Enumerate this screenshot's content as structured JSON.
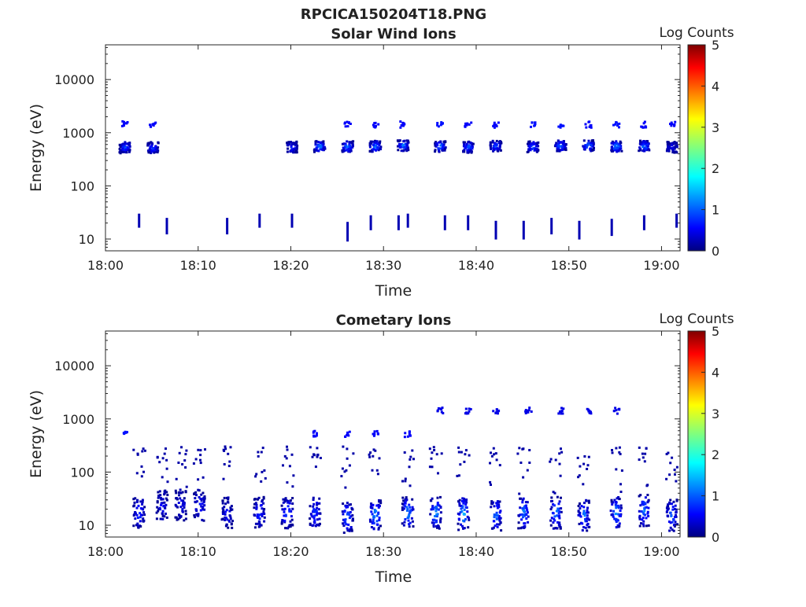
{
  "figure": {
    "title": "RPCICA150204T18.PNG"
  },
  "chart_data": [
    {
      "type": "heatmap",
      "title": "Solar Wind Ions",
      "xlabel": "Time",
      "ylabel": "Energy (eV)",
      "x_ticks": [
        "18:00",
        "18:10",
        "18:20",
        "18:30",
        "18:40",
        "18:50",
        "19:00"
      ],
      "y_ticks": [
        "10",
        "100",
        "1000",
        "10000"
      ],
      "y_scale": "log",
      "ylim": [
        6,
        45000
      ],
      "xlim": [
        "18:00",
        "19:02"
      ],
      "colorbar": {
        "label": "Log Counts",
        "range": [
          0,
          5
        ],
        "ticks": [
          "0",
          "1",
          "2",
          "3",
          "4",
          "5"
        ],
        "colormap": "jet"
      },
      "blobs": [
        {
          "t": "18:02",
          "e": 550,
          "c": 1.0
        },
        {
          "t": "18:05",
          "e": 550,
          "c": 0.9
        },
        {
          "t": "18:20",
          "e": 560,
          "c": 0.8
        },
        {
          "t": "18:23",
          "e": 580,
          "c": 1.4
        },
        {
          "t": "18:26",
          "e": 580,
          "c": 1.3
        },
        {
          "t": "18:29",
          "e": 580,
          "c": 1.3
        },
        {
          "t": "18:32",
          "e": 600,
          "c": 1.3
        },
        {
          "t": "18:36",
          "e": 580,
          "c": 1.2
        },
        {
          "t": "18:39",
          "e": 560,
          "c": 1.2
        },
        {
          "t": "18:42",
          "e": 580,
          "c": 1.1
        },
        {
          "t": "18:46",
          "e": 570,
          "c": 1.2
        },
        {
          "t": "18:49",
          "e": 590,
          "c": 1.2
        },
        {
          "t": "18:52",
          "e": 600,
          "c": 1.3
        },
        {
          "t": "18:55",
          "e": 580,
          "c": 1.5
        },
        {
          "t": "18:58",
          "e": 590,
          "c": 1.3
        },
        {
          "t": "19:01",
          "e": 560,
          "c": 0.6
        }
      ],
      "secondary": [
        {
          "t": "18:02",
          "e": 1500,
          "c": 0.6
        },
        {
          "t": "18:05",
          "e": 1500,
          "c": 0.6
        },
        {
          "t": "18:26",
          "e": 1500,
          "c": 0.6
        },
        {
          "t": "18:29",
          "e": 1500,
          "c": 0.6
        },
        {
          "t": "18:32",
          "e": 1500,
          "c": 0.6
        },
        {
          "t": "18:36",
          "e": 1500,
          "c": 0.7
        },
        {
          "t": "18:39",
          "e": 1500,
          "c": 0.6
        },
        {
          "t": "18:42",
          "e": 1500,
          "c": 0.6
        },
        {
          "t": "18:46",
          "e": 1500,
          "c": 0.7
        },
        {
          "t": "18:49",
          "e": 1500,
          "c": 0.7
        },
        {
          "t": "18:52",
          "e": 1500,
          "c": 0.6
        },
        {
          "t": "18:55",
          "e": 1500,
          "c": 0.7
        },
        {
          "t": "18:58",
          "e": 1500,
          "c": 0.6
        },
        {
          "t": "19:01",
          "e": 1500,
          "c": 0.6
        }
      ],
      "low_bars": [
        {
          "t": "18:03.5",
          "e": 20
        },
        {
          "t": "18:06.5",
          "e": 15
        },
        {
          "t": "18:13",
          "e": 15
        },
        {
          "t": "18:16.5",
          "e": 20
        },
        {
          "t": "18:20",
          "e": 20
        },
        {
          "t": "18:26",
          "e": 11
        },
        {
          "t": "18:28.5",
          "e": 18
        },
        {
          "t": "18:31.5",
          "e": 18
        },
        {
          "t": "18:32.5",
          "e": 20
        },
        {
          "t": "18:36.5",
          "e": 18
        },
        {
          "t": "18:39",
          "e": 18
        },
        {
          "t": "18:42",
          "e": 12
        },
        {
          "t": "18:45",
          "e": 12
        },
        {
          "t": "18:48",
          "e": 15
        },
        {
          "t": "18:51",
          "e": 12
        },
        {
          "t": "18:54.5",
          "e": 14
        },
        {
          "t": "18:58",
          "e": 18
        },
        {
          "t": "19:01.5",
          "e": 20
        }
      ]
    },
    {
      "type": "heatmap",
      "title": "Cometary Ions",
      "xlabel": "Time",
      "ylabel": "Energy (eV)",
      "x_ticks": [
        "18:00",
        "18:10",
        "18:20",
        "18:30",
        "18:40",
        "18:50",
        "19:00"
      ],
      "y_ticks": [
        "10",
        "100",
        "1000",
        "10000"
      ],
      "y_scale": "log",
      "ylim": [
        6,
        45000
      ],
      "xlim": [
        "18:00",
        "19:02"
      ],
      "colorbar": {
        "label": "Log Counts",
        "range": [
          0,
          5
        ],
        "ticks": [
          "0",
          "1",
          "2",
          "3",
          "4",
          "5"
        ],
        "colormap": "jet"
      },
      "blobs": [
        {
          "t": "18:03.5",
          "e": 18,
          "c": 0.9
        },
        {
          "t": "18:06",
          "e": 25,
          "c": 0.6
        },
        {
          "t": "18:08",
          "e": 25,
          "c": 0.6
        },
        {
          "t": "18:10",
          "e": 25,
          "c": 0.8
        },
        {
          "t": "18:13",
          "e": 18,
          "c": 0.7
        },
        {
          "t": "18:16.5",
          "e": 18,
          "c": 0.9
        },
        {
          "t": "18:19.5",
          "e": 18,
          "c": 1.1
        },
        {
          "t": "18:22.5",
          "e": 18,
          "c": 0.9
        },
        {
          "t": "18:26",
          "e": 15,
          "c": 1.2
        },
        {
          "t": "18:29",
          "e": 16,
          "c": 1.5
        },
        {
          "t": "18:32.5",
          "e": 18,
          "c": 1.4
        },
        {
          "t": "18:35.5",
          "e": 18,
          "c": 1.4
        },
        {
          "t": "18:38.5",
          "e": 17,
          "c": 1.6
        },
        {
          "t": "18:42",
          "e": 16,
          "c": 1.2
        },
        {
          "t": "18:45",
          "e": 18,
          "c": 1.3
        },
        {
          "t": "18:48.5",
          "e": 18,
          "c": 1.4
        },
        {
          "t": "18:51.5",
          "e": 16,
          "c": 1.3
        },
        {
          "t": "18:55",
          "e": 18,
          "c": 1.4
        },
        {
          "t": "18:58",
          "e": 20,
          "c": 1.2
        },
        {
          "t": "19:01",
          "e": 16,
          "c": 1.1
        }
      ],
      "secondary": [
        {
          "t": "18:02",
          "e": 550,
          "c": 0.7
        },
        {
          "t": "18:22.5",
          "e": 550,
          "c": 0.6
        },
        {
          "t": "18:26",
          "e": 550,
          "c": 0.6
        },
        {
          "t": "18:29",
          "e": 550,
          "c": 0.6
        },
        {
          "t": "18:32.5",
          "e": 550,
          "c": 0.6
        },
        {
          "t": "18:36",
          "e": 1500,
          "c": 0.5
        },
        {
          "t": "18:39",
          "e": 1500,
          "c": 0.5
        },
        {
          "t": "18:42",
          "e": 1500,
          "c": 0.5
        },
        {
          "t": "18:45.5",
          "e": 1500,
          "c": 0.5
        },
        {
          "t": "18:49",
          "e": 1500,
          "c": 0.5
        },
        {
          "t": "18:52",
          "e": 1500,
          "c": 0.5
        },
        {
          "t": "18:55",
          "e": 1500,
          "c": 0.5
        }
      ]
    }
  ]
}
